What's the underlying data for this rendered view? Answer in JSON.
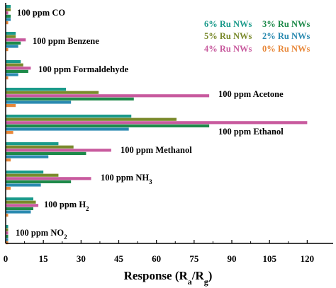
{
  "chart_data": {
    "type": "bar",
    "orientation": "horizontal",
    "title": "",
    "xlabel": {
      "text": "Response (R",
      "sub_a": "a",
      "mid": "/R",
      "sub_g": "g",
      "end": ")"
    },
    "ylabel": "",
    "xlim": [
      0,
      123
    ],
    "xticks": [
      "0",
      "15",
      "30",
      "45",
      "60",
      "75",
      "90",
      "105",
      "120"
    ],
    "xtick_values": [
      0,
      15,
      30,
      45,
      60,
      75,
      90,
      105,
      120
    ],
    "grid": false,
    "legend_position": "top-right",
    "categories": [
      {
        "text": "100 ppm CO",
        "sub": "",
        "after": ""
      },
      {
        "text": "100 ppm Benzene",
        "sub": "",
        "after": ""
      },
      {
        "text": "100 ppm Formaldehyde",
        "sub": "",
        "after": ""
      },
      {
        "text": "100 ppm Acetone",
        "sub": "",
        "after": ""
      },
      {
        "text": "100 ppm Ethanol",
        "sub": "",
        "after": ""
      },
      {
        "text": "100 ppm Methanol",
        "sub": "",
        "after": ""
      },
      {
        "text": "100 ppm NH",
        "sub": "3",
        "after": ""
      },
      {
        "text": "100 ppm H",
        "sub": "2",
        "after": ""
      },
      {
        "text": "100 ppm NO",
        "sub": "2",
        "after": ""
      }
    ],
    "series": [
      {
        "name": "6% Ru NWs",
        "color": "#1a9a8a",
        "values": [
          2,
          4,
          6,
          24,
          50,
          21,
          15,
          11,
          1
        ]
      },
      {
        "name": "5% Ru NWs",
        "color": "#7a8a2c",
        "values": [
          2,
          4,
          7,
          37,
          68,
          27,
          21,
          12,
          1
        ]
      },
      {
        "name": "4% Ru NWs",
        "color": "#c85a9e",
        "values": [
          1,
          8,
          10,
          81,
          120,
          42,
          34,
          13,
          1
        ]
      },
      {
        "name": "3% Ru NWs",
        "color": "#1e8a4a",
        "values": [
          2,
          6,
          9,
          51,
          81,
          32,
          26,
          11,
          1
        ]
      },
      {
        "name": "2% Ru NWs",
        "color": "#2a8ab0",
        "values": [
          2,
          5,
          5,
          26,
          49,
          17,
          14,
          10,
          1
        ]
      },
      {
        "name": "0% Ru NWs",
        "color": "#e8883a",
        "values": [
          1,
          1,
          1,
          4,
          3,
          2,
          2,
          1,
          1
        ]
      }
    ],
    "legend": [
      {
        "name": "6% Ru NWs",
        "color": "#1a9a8a"
      },
      {
        "name": "3% Ru NWs",
        "color": "#1e8a4a"
      },
      {
        "name": "5% Ru NWs",
        "color": "#7a8a2c"
      },
      {
        "name": "2% Ru NWs",
        "color": "#2a8ab0"
      },
      {
        "name": "4% Ru NWs",
        "color": "#c85a9e"
      },
      {
        "name": "0% Ru NWs",
        "color": "#e8883a"
      }
    ]
  }
}
